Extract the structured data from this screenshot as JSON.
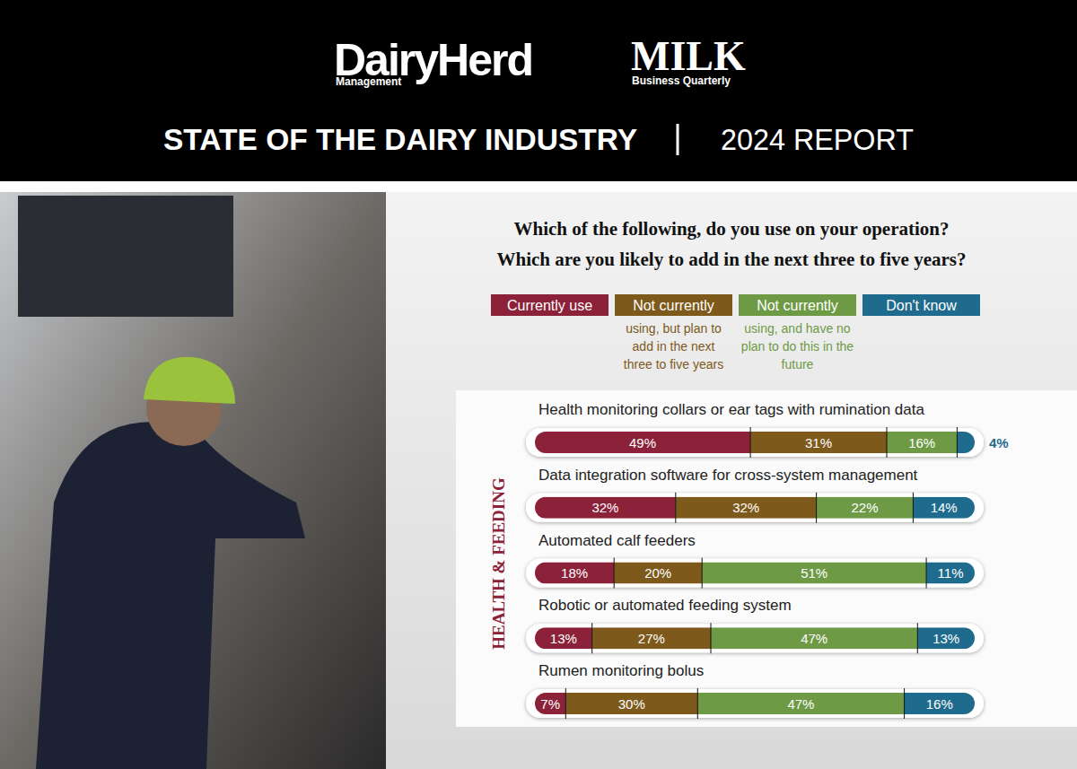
{
  "header": {
    "brand": "DairyHerd",
    "brand_sub": "Management",
    "partner": "MILK",
    "partner_sub": "Business Quarterly",
    "title": "STATE OF THE DAIRY INDUSTRY",
    "report": "2024 REPORT"
  },
  "chart_data": {
    "type": "bar",
    "orientation": "horizontal",
    "stacked": true,
    "data_labels": true,
    "tick_labels": false,
    "legend": "top",
    "title": "Which of the following, do you use on your operation?",
    "subtitle": "Which are you likely to add in the next three to five years?",
    "ylabel": "HEALTH & FEEDING",
    "xlim": [
      0,
      100
    ],
    "categories": [
      "Health monitoring collars or ear tags with rumination data",
      "Data integration software for cross-system management",
      "Automated calf feeders",
      "Robotic or automated feeding system",
      "Rumen monitoring bolus"
    ],
    "series": [
      {
        "name": "Currently use",
        "color": "#8b2239",
        "values": [
          49,
          32,
          18,
          13,
          7
        ],
        "value_labels": [
          "49%",
          "32%",
          "18%",
          "13%",
          "7%"
        ]
      },
      {
        "name": "Not currently using, but plan to add in the next three to five years",
        "color": "#7d5a1b",
        "values": [
          31,
          32,
          20,
          27,
          30
        ],
        "value_labels": [
          "31%",
          "32%",
          "20%",
          "27%",
          "30%"
        ]
      },
      {
        "name": "Not currently using, and have no plan to do this in the future",
        "color": "#6e9a46",
        "values": [
          16,
          22,
          51,
          47,
          47
        ],
        "value_labels": [
          "16%",
          "22%",
          "51%",
          "47%",
          "47%"
        ]
      },
      {
        "name": "Don't know",
        "color": "#1f6b8e",
        "values": [
          4,
          14,
          11,
          13,
          16
        ],
        "value_labels": [
          "4%",
          "14%",
          "11%",
          "13%",
          "16%"
        ]
      }
    ]
  }
}
